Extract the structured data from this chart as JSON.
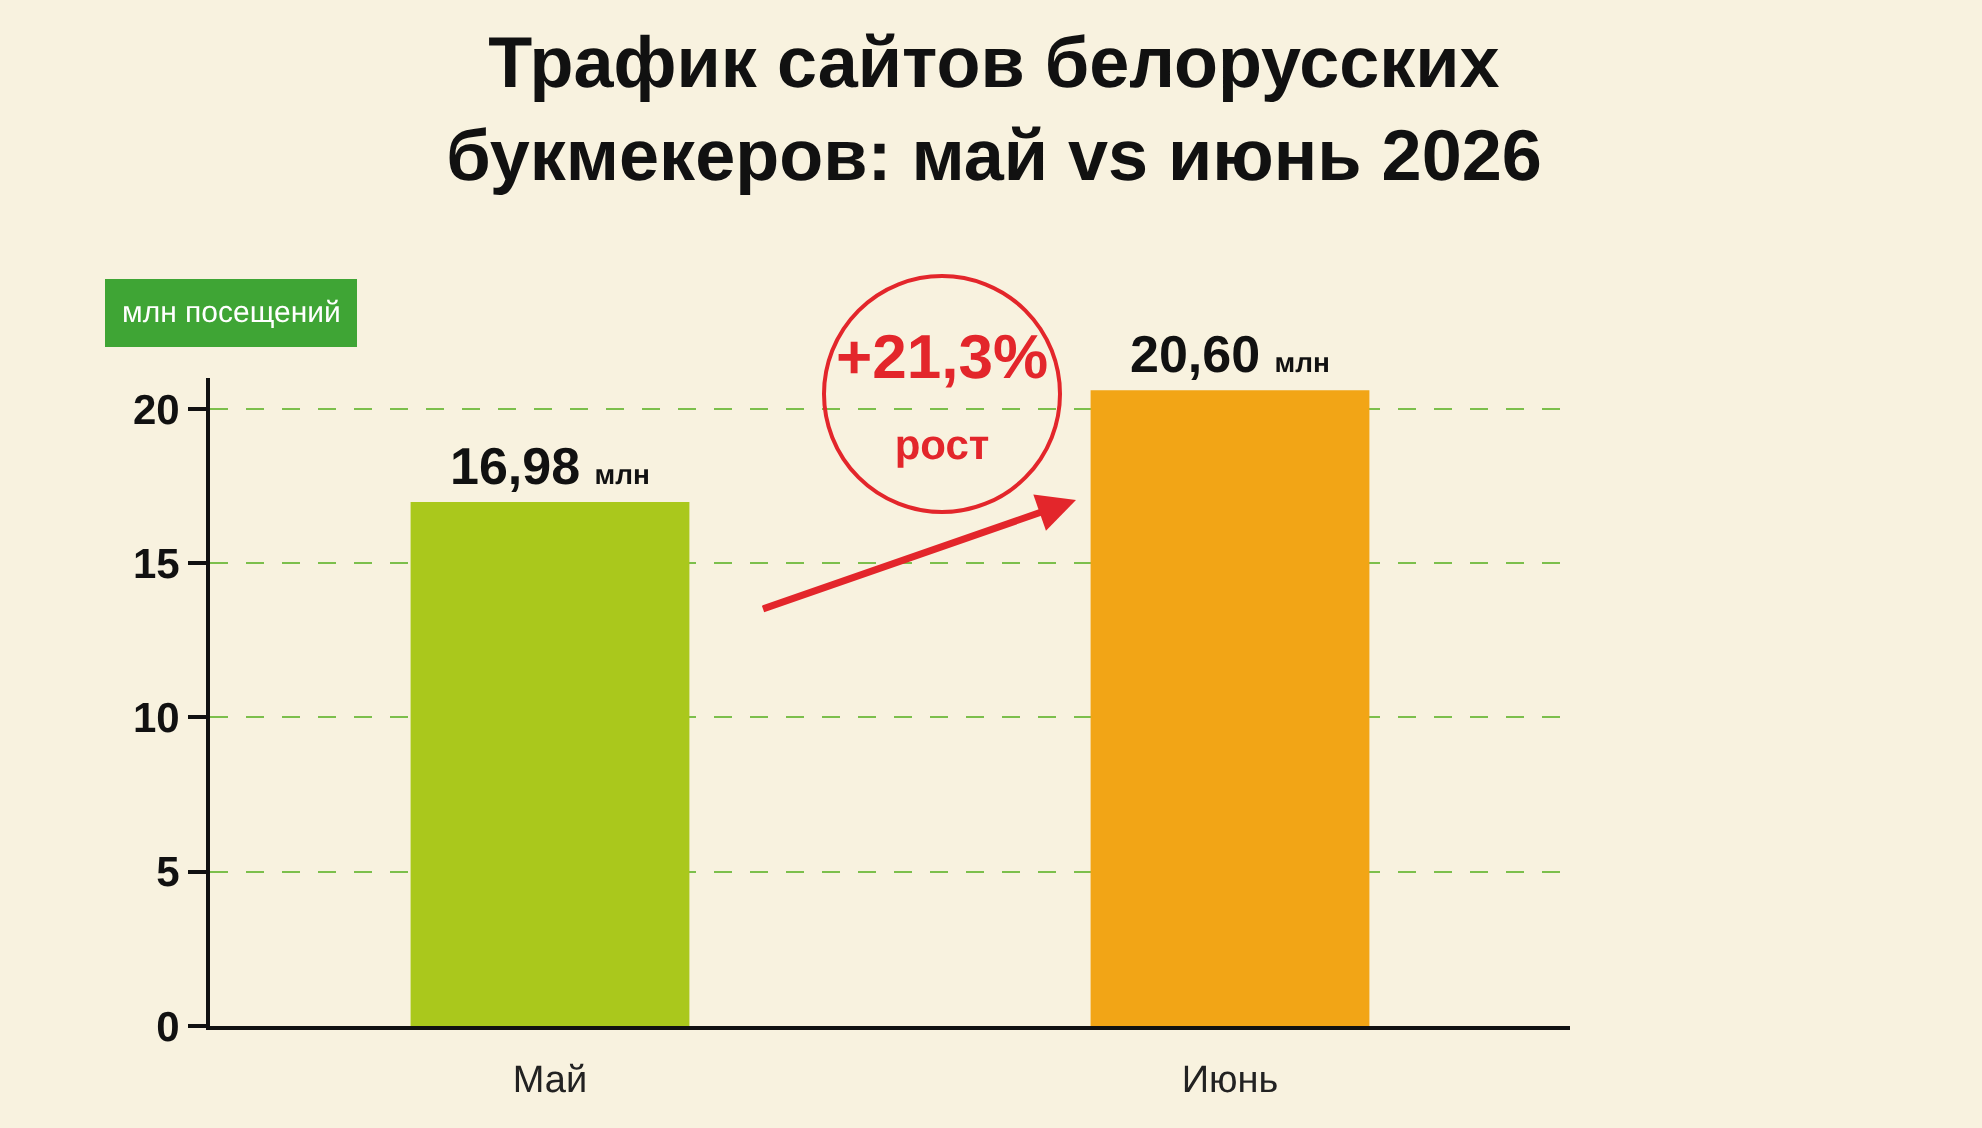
{
  "chart_data": {
    "type": "bar",
    "title": "Трафик сайтов белорусских букмекеров: май vs июнь 2026",
    "ylabel": "млн посещений",
    "categories": [
      "Май",
      "Июнь"
    ],
    "values": [
      16.98,
      20.6
    ],
    "colors": [
      "#aac81c",
      "#f2a516"
    ],
    "value_labels": [
      "16,98 млн",
      "20,60 млн"
    ],
    "ylim": [
      0,
      21
    ],
    "yticks": [
      0,
      5,
      10,
      15,
      20
    ],
    "grid": "y",
    "annotations": [
      "+21,3%\nрост"
    ]
  }
}
